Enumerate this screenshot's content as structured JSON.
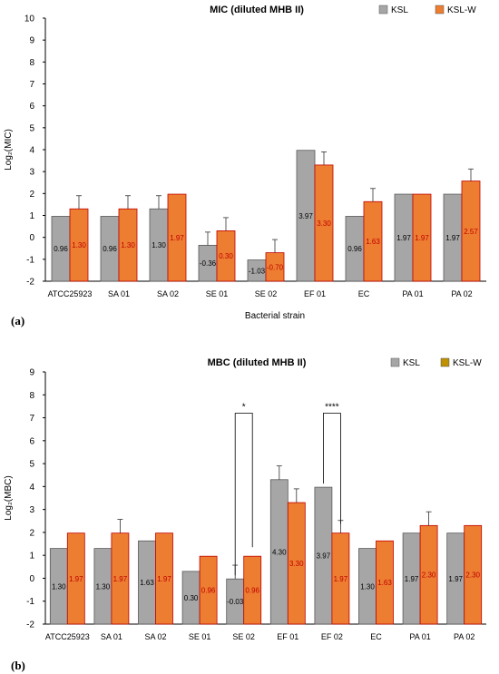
{
  "colors": {
    "ksl": "#a6a6a6",
    "ksl_w": "#ed7d31",
    "ksl_w_legend": "#bf9000",
    "value_label_ksl": "#000000",
    "value_label_ksl_w": "#c00000"
  },
  "chart_data": [
    {
      "type": "bar",
      "panel_label": "(a)",
      "title": "MIC (diluted MHB II)",
      "xlabel": "Bacterial strain",
      "ylabel": "Log₂(MIC)",
      "ylim": [
        -2,
        10
      ],
      "yticks": [
        "10",
        "9",
        "8",
        "7",
        "6",
        "5",
        "4",
        "3",
        "2",
        "1",
        "0",
        "-1",
        "-2"
      ],
      "legend_position": "top-right",
      "categories": [
        "ATCC25923",
        "SA 01",
        "SA 02",
        "SE 01",
        "SE 02",
        "EF 01",
        "EC",
        "PA 01",
        "PA 02"
      ],
      "series": [
        {
          "name": "KSL",
          "values": [
            0.96,
            0.96,
            1.3,
            -0.36,
            -1.03,
            3.97,
            0.96,
            1.97,
            1.97
          ],
          "labels": [
            "0.96",
            "0.96",
            "1.30",
            "-0.36",
            "-1.03",
            "3.97",
            "0.96",
            "1.97",
            "1.97"
          ],
          "errors": [
            0,
            0,
            0.6,
            0.6,
            0,
            0,
            0,
            0,
            0
          ]
        },
        {
          "name": "KSL-W",
          "values": [
            1.3,
            1.3,
            1.97,
            0.3,
            -0.7,
            3.3,
            1.63,
            1.97,
            2.57
          ],
          "labels": [
            "1.30",
            "1.30",
            "1.97",
            "0.30",
            "-0.70",
            "3.30",
            "1.63",
            "1.97",
            "2.57"
          ],
          "errors": [
            0.6,
            0.6,
            0,
            0.6,
            0.6,
            0.6,
            0.6,
            0,
            0.55
          ]
        }
      ],
      "significance": []
    },
    {
      "type": "bar",
      "panel_label": "(b)",
      "title": "MBC (diluted MHB II)",
      "xlabel": "",
      "ylabel": "Log₂(MBC)",
      "ylim": [
        -2,
        9
      ],
      "yticks": [
        "9",
        "8",
        "7",
        "6",
        "5",
        "4",
        "3",
        "2",
        "1",
        "0",
        "-1",
        "-2"
      ],
      "legend_position": "top-right",
      "categories": [
        "ATCC25923",
        "SA 01",
        "SA 02",
        "SE 01",
        "SE 02",
        "EF 01",
        "EF 02",
        "EC",
        "PA 01",
        "PA 02"
      ],
      "series": [
        {
          "name": "KSL",
          "values": [
            1.3,
            1.3,
            1.63,
            0.3,
            -0.03,
            4.3,
            3.97,
            1.3,
            1.97,
            1.97
          ],
          "labels": [
            "1.30",
            "1.30",
            "1.63",
            "0.30",
            "-0.03",
            "4.30",
            "3.97",
            "1.30",
            "1.97",
            "1.97"
          ],
          "errors": [
            0,
            0,
            0,
            0,
            0.6,
            0.6,
            0,
            0,
            0,
            0
          ]
        },
        {
          "name": "KSL-W",
          "values": [
            1.97,
            1.97,
            1.97,
            0.96,
            0.96,
            3.3,
            1.97,
            1.63,
            2.3,
            2.3
          ],
          "labels": [
            "1.97",
            "1.97",
            "1.97",
            "0.96",
            "0.96",
            "3.30",
            "1.97",
            "1.63",
            "2.30",
            "2.30"
          ],
          "errors": [
            0,
            0.6,
            0,
            0,
            0,
            0.6,
            0.55,
            0,
            0.6,
            0
          ]
        }
      ],
      "significance": [
        {
          "category_index": 4,
          "label": "*",
          "top": 7.2
        },
        {
          "category_index": 6,
          "label": "****",
          "top": 7.2
        }
      ]
    }
  ]
}
